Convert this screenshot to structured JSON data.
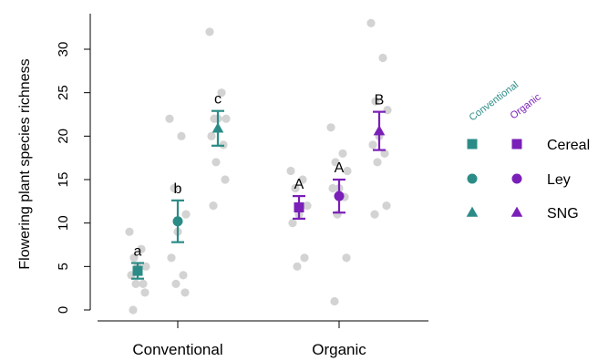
{
  "chart_data": {
    "type": "scatter",
    "ylabel": "Flowering plant species richness",
    "xlabel": "",
    "ylim": [
      -1,
      34
    ],
    "yticks": [
      0,
      5,
      10,
      15,
      20,
      25,
      30
    ],
    "groups": [
      "Conventional",
      "Organic"
    ],
    "habitats": [
      "Cereal",
      "Ley",
      "SNG"
    ],
    "series": [
      {
        "system": "Conventional",
        "habitat": "Cereal",
        "marker": "square",
        "color": "#2b8c87",
        "mean": 4.5,
        "se_low": 3.6,
        "se_high": 5.4,
        "letter": "a",
        "raw": [
          9,
          7,
          6,
          5,
          5,
          4,
          3,
          3,
          2,
          0
        ]
      },
      {
        "system": "Conventional",
        "habitat": "Ley",
        "marker": "circle",
        "color": "#2b8c87",
        "mean": 10.2,
        "se_low": 7.8,
        "se_high": 12.6,
        "letter": "b",
        "raw": [
          22,
          20,
          14,
          11,
          9,
          6,
          4,
          3,
          2
        ]
      },
      {
        "system": "Conventional",
        "habitat": "SNG",
        "marker": "triangle",
        "color": "#2b8c87",
        "mean": 20.9,
        "se_low": 18.9,
        "se_high": 22.9,
        "letter": "c",
        "raw": [
          32,
          25,
          22,
          22,
          22,
          20,
          19,
          17,
          15,
          12
        ]
      },
      {
        "system": "Organic",
        "habitat": "Cereal",
        "marker": "square",
        "color": "#7a1fb8",
        "mean": 11.8,
        "se_low": 10.5,
        "se_high": 13.1,
        "letter": "A",
        "raw": [
          16,
          15,
          14,
          12,
          11,
          10,
          6,
          5
        ]
      },
      {
        "system": "Organic",
        "habitat": "Ley",
        "marker": "circle",
        "color": "#7a1fb8",
        "mean": 13.1,
        "se_low": 11.2,
        "se_high": 15.0,
        "letter": "A",
        "raw": [
          21,
          18,
          17,
          16,
          14,
          14,
          13,
          11,
          6,
          1
        ]
      },
      {
        "system": "Organic",
        "habitat": "SNG",
        "marker": "triangle",
        "color": "#7a1fb8",
        "mean": 20.6,
        "se_low": 18.4,
        "se_high": 22.8,
        "letter": "B",
        "raw": [
          33,
          29,
          24,
          23,
          20,
          19,
          18,
          17,
          12,
          11
        ]
      }
    ],
    "legend": {
      "placement": "right",
      "column_headers": [
        {
          "text": "Conventional",
          "color": "#2b8c87"
        },
        {
          "text": "Organic",
          "color": "#7a1fb8"
        }
      ],
      "rows": [
        "Cereal",
        "Ley",
        "SNG"
      ]
    },
    "grid": false
  }
}
